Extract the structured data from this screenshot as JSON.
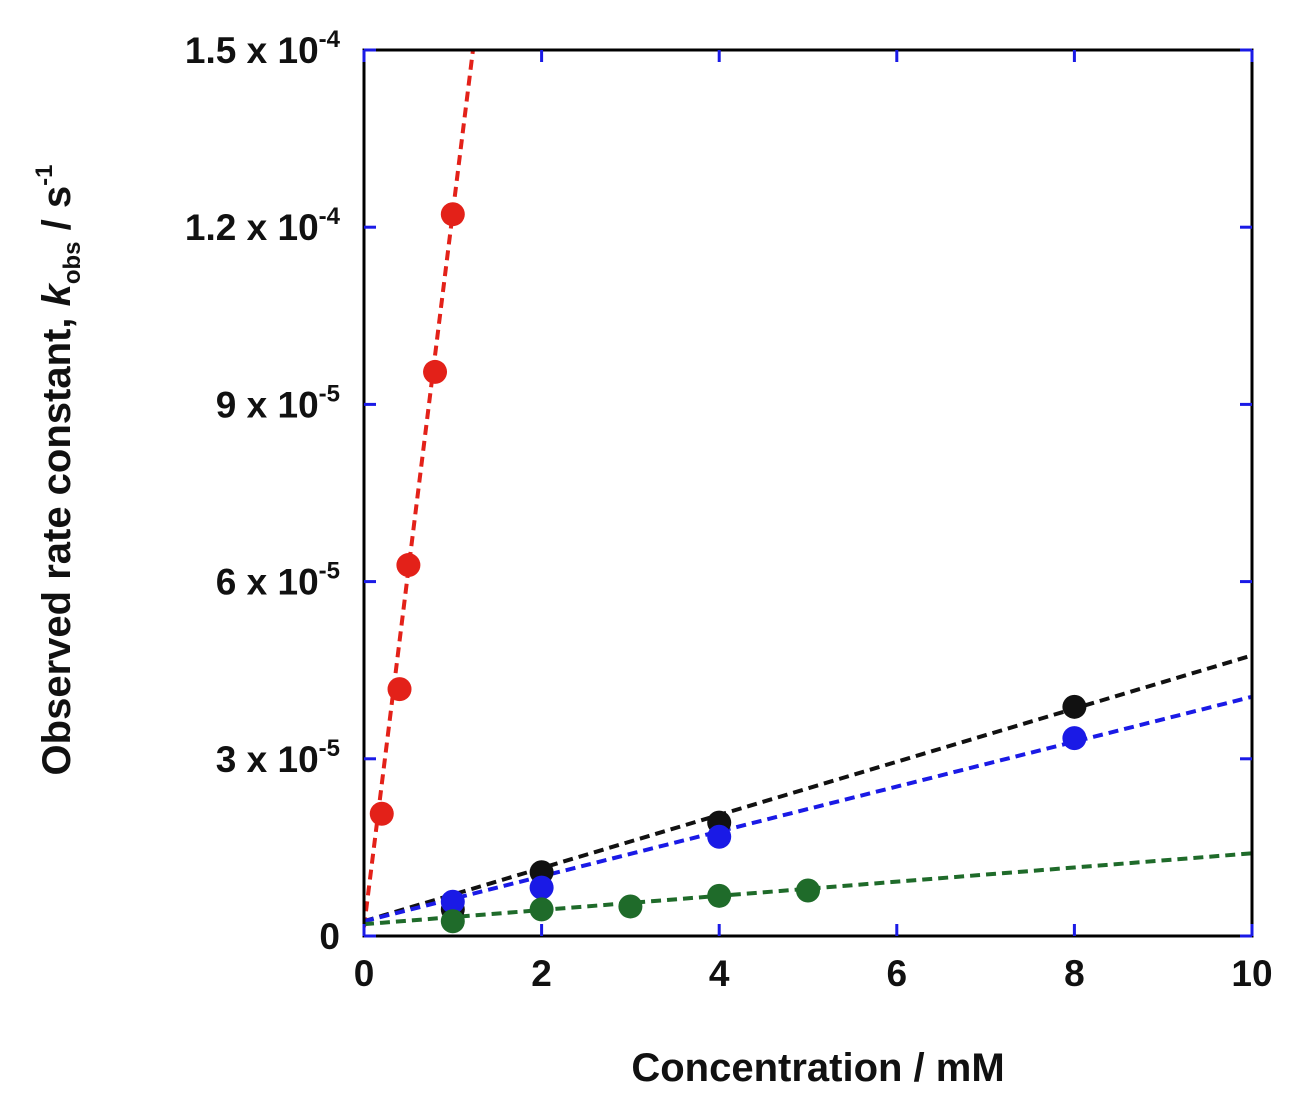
{
  "chart_data": {
    "type": "scatter",
    "title": "",
    "xlabel": "Concentration / mM",
    "ylabel": {
      "prefix": "Observed rate constant, ",
      "symbol": "k",
      "subscript": "obs",
      "unit": " / s",
      "unit_exponent": "-1"
    },
    "xlim": [
      0,
      10
    ],
    "ylim": [
      0,
      0.00015
    ],
    "x_ticks": [
      {
        "value": 0,
        "label": "0"
      },
      {
        "value": 2,
        "label": "2"
      },
      {
        "value": 4,
        "label": "4"
      },
      {
        "value": 6,
        "label": "6"
      },
      {
        "value": 8,
        "label": "8"
      },
      {
        "value": 10,
        "label": "10"
      }
    ],
    "y_ticks": [
      {
        "value": 0,
        "label": "0",
        "base": "",
        "exponent": ""
      },
      {
        "value": 3e-05,
        "label": "",
        "base": "3 x 10",
        "exponent": "-5"
      },
      {
        "value": 6e-05,
        "label": "",
        "base": "6 x 10",
        "exponent": "-5"
      },
      {
        "value": 9e-05,
        "label": "",
        "base": "9 x 10",
        "exponent": "-5"
      },
      {
        "value": 0.00012,
        "label": "",
        "base": "1.2 x 10",
        "exponent": "-4"
      },
      {
        "value": 0.00015,
        "label": "",
        "base": "1.5 x 10",
        "exponent": "-4"
      }
    ],
    "grid": false,
    "series": [
      {
        "name": "red",
        "color": "#e32119",
        "points": [
          {
            "x": 0.2,
            "y": 2.07e-05
          },
          {
            "x": 0.4,
            "y": 4.18e-05
          },
          {
            "x": 0.5,
            "y": 6.28e-05
          },
          {
            "x": 0.8,
            "y": 9.55e-05
          },
          {
            "x": 1.0,
            "y": 0.0001222
          }
        ],
        "fit": {
          "intercept": 1.5e-06,
          "slope": 0.000121
        }
      },
      {
        "name": "black",
        "color": "#111111",
        "points": [
          {
            "x": 1,
            "y": 4.5e-06
          },
          {
            "x": 2,
            "y": 1.08e-05
          },
          {
            "x": 4,
            "y": 1.92e-05
          },
          {
            "x": 8,
            "y": 3.88e-05
          }
        ],
        "fit": {
          "intercept": 2.5e-06,
          "slope": 4.5e-06
        }
      },
      {
        "name": "blue",
        "color": "#1a1ae6",
        "points": [
          {
            "x": 1,
            "y": 5.8e-06
          },
          {
            "x": 2,
            "y": 8.2e-06
          },
          {
            "x": 4,
            "y": 1.68e-05
          },
          {
            "x": 8,
            "y": 3.35e-05
          }
        ],
        "fit": {
          "intercept": 2.5e-06,
          "slope": 3.8e-06
        }
      },
      {
        "name": "green",
        "color": "#1f6b2a",
        "points": [
          {
            "x": 1,
            "y": 2.5e-06
          },
          {
            "x": 2,
            "y": 4.5e-06
          },
          {
            "x": 3,
            "y": 5e-06
          },
          {
            "x": 4,
            "y": 6.8e-06
          },
          {
            "x": 5,
            "y": 7.7e-06
          }
        ],
        "fit": {
          "intercept": 2e-06,
          "slope": 1.2e-06
        }
      }
    ],
    "tick_color": "#1a1ae6",
    "axis_color": "#000000"
  }
}
